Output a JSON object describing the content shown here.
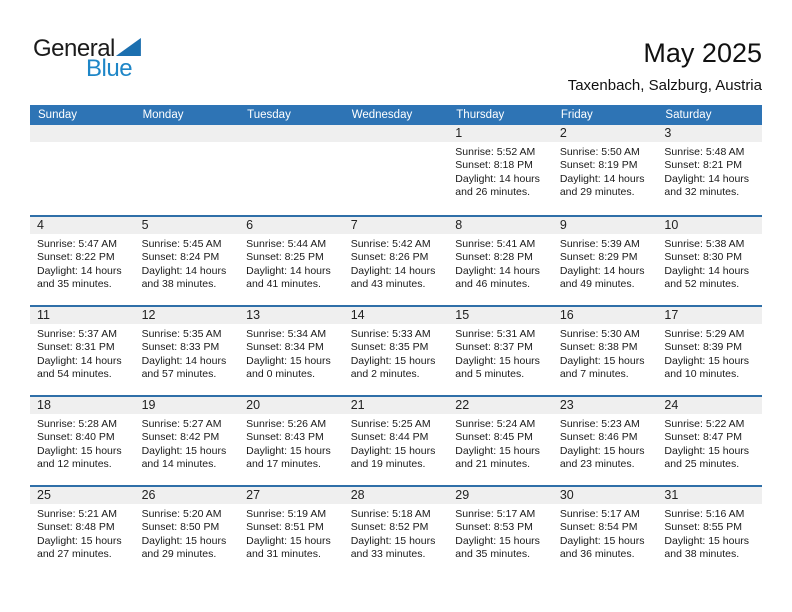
{
  "logo": {
    "part1": "General",
    "part2": "Blue"
  },
  "title": "May 2025",
  "subtitle": "Taxenbach, Salzburg, Austria",
  "colors": {
    "header_bg": "#2E74B5",
    "week_divider": "#2F6FA8",
    "date_band": "#EFEFEF",
    "day_header_text": "#FFFFFF",
    "logo_blue": "#1E86C7",
    "logo_triangle": "#1B6FAF"
  },
  "calendar": {
    "day_headers": [
      "Sunday",
      "Monday",
      "Tuesday",
      "Wednesday",
      "Thursday",
      "Friday",
      "Saturday"
    ],
    "weeks": [
      [
        null,
        null,
        null,
        null,
        {
          "date": "1",
          "lines": [
            "Sunrise: 5:52 AM",
            "Sunset: 8:18 PM",
            "Daylight: 14 hours",
            "and 26 minutes."
          ]
        },
        {
          "date": "2",
          "lines": [
            "Sunrise: 5:50 AM",
            "Sunset: 8:19 PM",
            "Daylight: 14 hours",
            "and 29 minutes."
          ]
        },
        {
          "date": "3",
          "lines": [
            "Sunrise: 5:48 AM",
            "Sunset: 8:21 PM",
            "Daylight: 14 hours",
            "and 32 minutes."
          ]
        }
      ],
      [
        {
          "date": "4",
          "lines": [
            "Sunrise: 5:47 AM",
            "Sunset: 8:22 PM",
            "Daylight: 14 hours",
            "and 35 minutes."
          ]
        },
        {
          "date": "5",
          "lines": [
            "Sunrise: 5:45 AM",
            "Sunset: 8:24 PM",
            "Daylight: 14 hours",
            "and 38 minutes."
          ]
        },
        {
          "date": "6",
          "lines": [
            "Sunrise: 5:44 AM",
            "Sunset: 8:25 PM",
            "Daylight: 14 hours",
            "and 41 minutes."
          ]
        },
        {
          "date": "7",
          "lines": [
            "Sunrise: 5:42 AM",
            "Sunset: 8:26 PM",
            "Daylight: 14 hours",
            "and 43 minutes."
          ]
        },
        {
          "date": "8",
          "lines": [
            "Sunrise: 5:41 AM",
            "Sunset: 8:28 PM",
            "Daylight: 14 hours",
            "and 46 minutes."
          ]
        },
        {
          "date": "9",
          "lines": [
            "Sunrise: 5:39 AM",
            "Sunset: 8:29 PM",
            "Daylight: 14 hours",
            "and 49 minutes."
          ]
        },
        {
          "date": "10",
          "lines": [
            "Sunrise: 5:38 AM",
            "Sunset: 8:30 PM",
            "Daylight: 14 hours",
            "and 52 minutes."
          ]
        }
      ],
      [
        {
          "date": "11",
          "lines": [
            "Sunrise: 5:37 AM",
            "Sunset: 8:31 PM",
            "Daylight: 14 hours",
            "and 54 minutes."
          ]
        },
        {
          "date": "12",
          "lines": [
            "Sunrise: 5:35 AM",
            "Sunset: 8:33 PM",
            "Daylight: 14 hours",
            "and 57 minutes."
          ]
        },
        {
          "date": "13",
          "lines": [
            "Sunrise: 5:34 AM",
            "Sunset: 8:34 PM",
            "Daylight: 15 hours",
            "and 0 minutes."
          ]
        },
        {
          "date": "14",
          "lines": [
            "Sunrise: 5:33 AM",
            "Sunset: 8:35 PM",
            "Daylight: 15 hours",
            "and 2 minutes."
          ]
        },
        {
          "date": "15",
          "lines": [
            "Sunrise: 5:31 AM",
            "Sunset: 8:37 PM",
            "Daylight: 15 hours",
            "and 5 minutes."
          ]
        },
        {
          "date": "16",
          "lines": [
            "Sunrise: 5:30 AM",
            "Sunset: 8:38 PM",
            "Daylight: 15 hours",
            "and 7 minutes."
          ]
        },
        {
          "date": "17",
          "lines": [
            "Sunrise: 5:29 AM",
            "Sunset: 8:39 PM",
            "Daylight: 15 hours",
            "and 10 minutes."
          ]
        }
      ],
      [
        {
          "date": "18",
          "lines": [
            "Sunrise: 5:28 AM",
            "Sunset: 8:40 PM",
            "Daylight: 15 hours",
            "and 12 minutes."
          ]
        },
        {
          "date": "19",
          "lines": [
            "Sunrise: 5:27 AM",
            "Sunset: 8:42 PM",
            "Daylight: 15 hours",
            "and 14 minutes."
          ]
        },
        {
          "date": "20",
          "lines": [
            "Sunrise: 5:26 AM",
            "Sunset: 8:43 PM",
            "Daylight: 15 hours",
            "and 17 minutes."
          ]
        },
        {
          "date": "21",
          "lines": [
            "Sunrise: 5:25 AM",
            "Sunset: 8:44 PM",
            "Daylight: 15 hours",
            "and 19 minutes."
          ]
        },
        {
          "date": "22",
          "lines": [
            "Sunrise: 5:24 AM",
            "Sunset: 8:45 PM",
            "Daylight: 15 hours",
            "and 21 minutes."
          ]
        },
        {
          "date": "23",
          "lines": [
            "Sunrise: 5:23 AM",
            "Sunset: 8:46 PM",
            "Daylight: 15 hours",
            "and 23 minutes."
          ]
        },
        {
          "date": "24",
          "lines": [
            "Sunrise: 5:22 AM",
            "Sunset: 8:47 PM",
            "Daylight: 15 hours",
            "and 25 minutes."
          ]
        }
      ],
      [
        {
          "date": "25",
          "lines": [
            "Sunrise: 5:21 AM",
            "Sunset: 8:48 PM",
            "Daylight: 15 hours",
            "and 27 minutes."
          ]
        },
        {
          "date": "26",
          "lines": [
            "Sunrise: 5:20 AM",
            "Sunset: 8:50 PM",
            "Daylight: 15 hours",
            "and 29 minutes."
          ]
        },
        {
          "date": "27",
          "lines": [
            "Sunrise: 5:19 AM",
            "Sunset: 8:51 PM",
            "Daylight: 15 hours",
            "and 31 minutes."
          ]
        },
        {
          "date": "28",
          "lines": [
            "Sunrise: 5:18 AM",
            "Sunset: 8:52 PM",
            "Daylight: 15 hours",
            "and 33 minutes."
          ]
        },
        {
          "date": "29",
          "lines": [
            "Sunrise: 5:17 AM",
            "Sunset: 8:53 PM",
            "Daylight: 15 hours",
            "and 35 minutes."
          ]
        },
        {
          "date": "30",
          "lines": [
            "Sunrise: 5:17 AM",
            "Sunset: 8:54 PM",
            "Daylight: 15 hours",
            "and 36 minutes."
          ]
        },
        {
          "date": "31",
          "lines": [
            "Sunrise: 5:16 AM",
            "Sunset: 8:55 PM",
            "Daylight: 15 hours",
            "and 38 minutes."
          ]
        }
      ]
    ]
  }
}
